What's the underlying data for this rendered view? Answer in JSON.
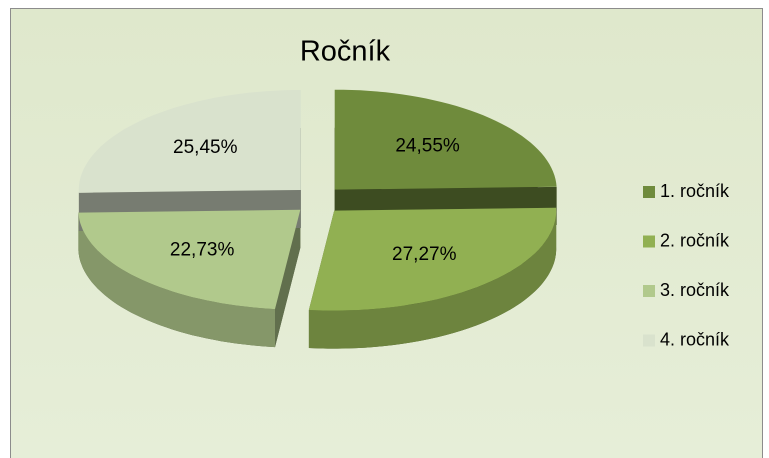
{
  "chart_data": {
    "type": "pie",
    "title": "Ročník",
    "categories": [
      "1. ročník",
      "2. ročník",
      "3. ročník",
      "4. ročník"
    ],
    "values": [
      24.55,
      27.27,
      22.73,
      25.45
    ],
    "value_labels": [
      "24,55%",
      "27,27%",
      "22,73%",
      "25,45%"
    ],
    "colors": [
      "#6f8b3c",
      "#91b052",
      "#b1c98c",
      "#d9e2cd"
    ],
    "legend": "right"
  }
}
